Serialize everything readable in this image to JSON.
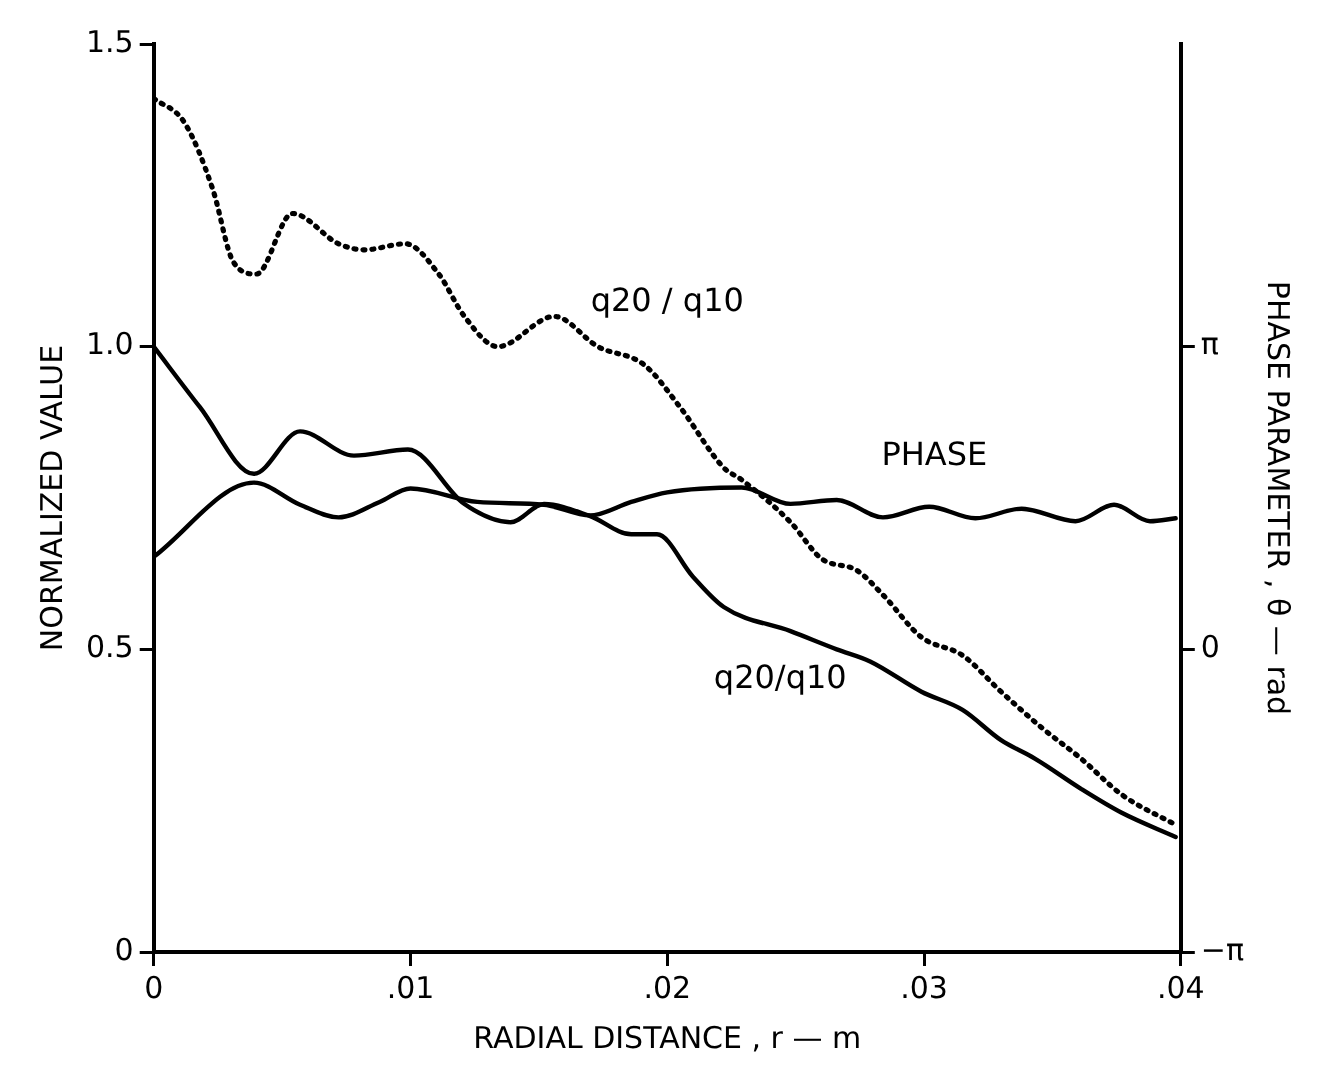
{
  "chart_data": {
    "type": "line",
    "xlabel": "RADIAL DISTANCE , r — m",
    "ylabel": "NORMALIZED VALUE",
    "y2label": "PHASE PARAMETER , θ — rad",
    "xlim": [
      0,
      0.04
    ],
    "xticks": [
      {
        "value": 0,
        "label": "0"
      },
      {
        "value": 0.01,
        "label": ".01"
      },
      {
        "value": 0.02,
        "label": ".02"
      },
      {
        "value": 0.03,
        "label": ".03"
      },
      {
        "value": 0.04,
        "label": ".04"
      }
    ],
    "ylim": [
      0,
      1.5
    ],
    "yticks": [
      0,
      0.5,
      {
        "value": 1.0,
        "label": "1.0"
      },
      {
        "value": 1.5,
        "label": "1.5"
      }
    ],
    "y2lim": [
      -3.1416,
      6.2832
    ],
    "y2ticks": [
      {
        "value": -3.1416,
        "label": "−π"
      },
      0,
      {
        "value": 3.1416,
        "label": "π"
      }
    ],
    "grid": false,
    "legend": false,
    "marker": "none",
    "series": [
      {
        "color": "#000000",
        "line_style": "dotted",
        "x": [
          0,
          0.0012,
          0.0023,
          0.0031,
          0.004,
          0.0054,
          0.0072,
          0.0082,
          0.0098,
          0.0111,
          0.0121,
          0.0134,
          0.0156,
          0.0173,
          0.0191,
          0.0205,
          0.0222,
          0.0229,
          0.0248,
          0.026,
          0.0274,
          0.0284,
          0.0299,
          0.0315,
          0.033,
          0.0346,
          0.0361,
          0.0377,
          0.0398
        ],
        "values": [
          1.41,
          1.37,
          1.26,
          1.14,
          1.12,
          1.22,
          1.17,
          1.16,
          1.17,
          1.12,
          1.05,
          1.0,
          1.05,
          1.0,
          0.97,
          0.9,
          0.8,
          0.78,
          0.71,
          0.65,
          0.63,
          0.59,
          0.52,
          0.49,
          0.43,
          0.37,
          0.32,
          0.26,
          0.21
        ]
      },
      {
        "color": "#000000",
        "line_style": "solid",
        "x": [
          0,
          0.0018,
          0.0039,
          0.0057,
          0.0078,
          0.0099,
          0.0121,
          0.0139,
          0.0152,
          0.017,
          0.0186,
          0.0196,
          0.021,
          0.0222,
          0.0248,
          0.0266,
          0.0279,
          0.0299,
          0.0315,
          0.033,
          0.0343,
          0.0361,
          0.0377,
          0.0398
        ],
        "values": [
          1.0,
          0.9,
          0.79,
          0.86,
          0.82,
          0.83,
          0.74,
          0.71,
          0.74,
          0.72,
          0.69,
          0.69,
          0.62,
          0.57,
          0.53,
          0.5,
          0.48,
          0.43,
          0.4,
          0.35,
          0.32,
          0.27,
          0.23,
          0.19
        ]
      },
      {
        "color": "#000000",
        "line_style": "solid",
        "axis": "y2",
        "x": [
          0,
          0.0039,
          0.0057,
          0.0072,
          0.0088,
          0.01,
          0.0126,
          0.0152,
          0.017,
          0.0186,
          0.02,
          0.0229,
          0.0248,
          0.0266,
          0.0284,
          0.0302,
          0.032,
          0.0338,
          0.0359,
          0.0374,
          0.0388,
          0.0398
        ],
        "values": [
          0.96,
          1.73,
          1.5,
          1.37,
          1.53,
          1.67,
          1.53,
          1.5,
          1.39,
          1.53,
          1.63,
          1.68,
          1.51,
          1.55,
          1.37,
          1.48,
          1.36,
          1.46,
          1.33,
          1.5,
          1.33,
          1.36
        ]
      }
    ],
    "annotations": [
      "q20 / q10",
      "PHASE",
      "q20/q10"
    ]
  }
}
